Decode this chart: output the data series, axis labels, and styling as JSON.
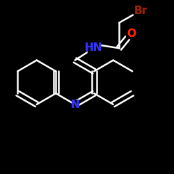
{
  "background_color": "#000000",
  "bond_color": "#ffffff",
  "line_width": 1.8,
  "atom_labels": {
    "NH": {
      "text": "HN",
      "color": "#3333ff",
      "fontsize": 11,
      "fontstyle": "normal"
    },
    "O": {
      "text": "O",
      "color": "#ff2200",
      "fontsize": 11,
      "fontstyle": "normal"
    },
    "Br": {
      "text": "Br",
      "color": "#992200",
      "fontsize": 11,
      "fontstyle": "normal"
    },
    "N_acridine": {
      "text": "N",
      "color": "#3333ff",
      "fontsize": 11,
      "fontstyle": "normal"
    }
  },
  "xlim": [
    -1.3,
    1.3
  ],
  "ylim": [
    -1.3,
    1.3
  ]
}
